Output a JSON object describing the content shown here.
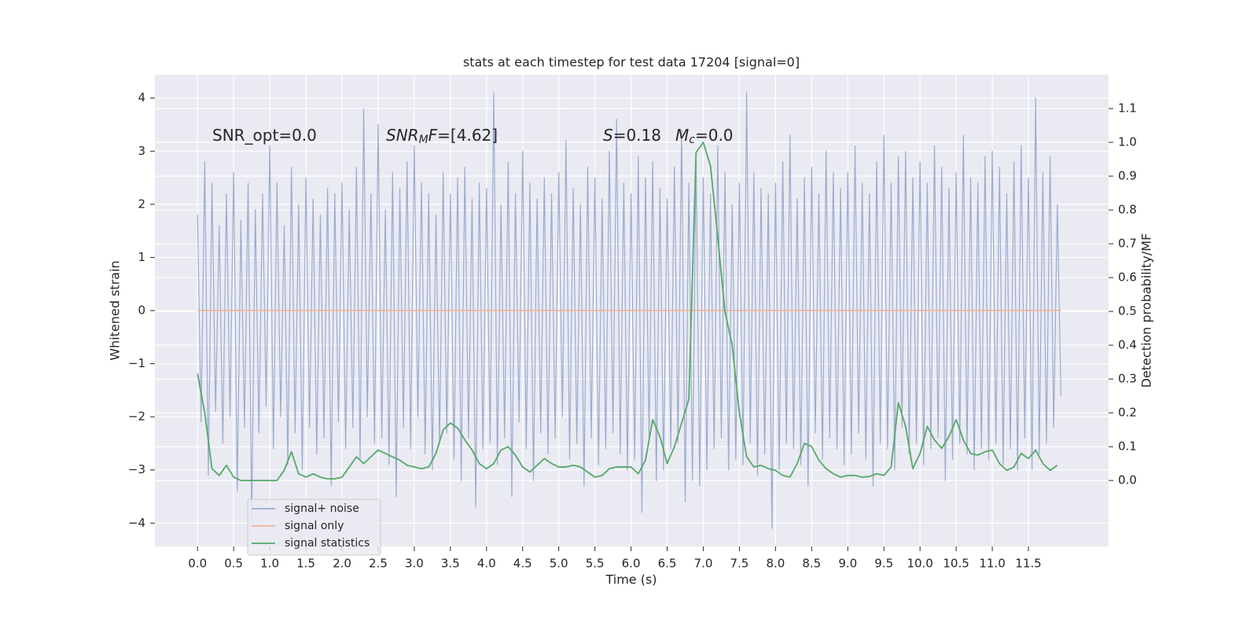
{
  "chart_data": {
    "type": "line",
    "title": "stats at each timestep for test data 17204 [signal=0]",
    "xlabel": "Time (s)",
    "ylabel": "Whitened strain",
    "y2label": "Detection probability/MF",
    "grid": true,
    "xlim": [
      -0.59,
      12.61
    ],
    "ylim": [
      -4.44,
      4.44
    ],
    "y2lim": [
      -0.195,
      1.2
    ],
    "xticks": [
      {
        "value": 0,
        "label": "0.0"
      },
      0.5,
      {
        "value": 1,
        "label": "1.0"
      },
      1.5,
      {
        "value": 2,
        "label": "2.0"
      },
      2.5,
      {
        "value": 3,
        "label": "3.0"
      },
      3.5,
      {
        "value": 4,
        "label": "4.0"
      },
      4.5,
      {
        "value": 5,
        "label": "5.0"
      },
      5.5,
      {
        "value": 6,
        "label": "6.0"
      },
      6.5,
      {
        "value": 7,
        "label": "7.0"
      },
      7.5,
      {
        "value": 8,
        "label": "8.0"
      },
      8.5,
      {
        "value": 9,
        "label": "9.0"
      },
      9.5,
      {
        "value": 10,
        "label": "10.0"
      },
      10.5,
      {
        "value": 11,
        "label": "11.0"
      },
      11.5
    ],
    "yticks": [
      {
        "value": -4,
        "label": "−4"
      },
      {
        "value": -3,
        "label": "−3"
      },
      {
        "value": -2,
        "label": "−2"
      },
      {
        "value": -1,
        "label": "−1"
      },
      0,
      1,
      2,
      3,
      4
    ],
    "y2ticks": [
      {
        "value": 0,
        "label": "0.0"
      },
      0.1,
      0.2,
      0.3,
      0.4,
      0.5,
      0.6,
      0.7,
      0.8,
      0.9,
      {
        "value": 1,
        "label": "1.0"
      },
      1.1
    ],
    "annotations": [
      {
        "parts": [
          {
            "text": "SNR_opt=0.0",
            "style": "normal"
          }
        ]
      },
      {
        "parts": [
          {
            "text": "SNR",
            "style": "italic"
          },
          {
            "text": "M",
            "style": "sub"
          },
          {
            "text": "F",
            "style": "italic"
          },
          {
            "text": "=[4.62]",
            "style": "normal"
          }
        ]
      },
      {
        "parts": [
          {
            "text": "S",
            "style": "italic"
          },
          {
            "text": "=0.18",
            "style": "normal"
          }
        ]
      },
      {
        "parts": [
          {
            "text": "M",
            "style": "italic"
          },
          {
            "text": "c",
            "style": "sub"
          },
          {
            "text": "=0.0",
            "style": "normal"
          }
        ]
      }
    ],
    "series": [
      {
        "name": "signal+ noise",
        "color": "#9aabd0",
        "axis": "y",
        "x": [
          0,
          0.05,
          0.1,
          0.15,
          0.2,
          0.25,
          0.3,
          0.35,
          0.4,
          0.45,
          0.5,
          0.55,
          0.6,
          0.65,
          0.7,
          0.75,
          0.8,
          0.85,
          0.9,
          0.95,
          1,
          1.05,
          1.1,
          1.15,
          1.2,
          1.25,
          1.3,
          1.35,
          1.4,
          1.45,
          1.5,
          1.55,
          1.6,
          1.65,
          1.7,
          1.75,
          1.8,
          1.85,
          1.9,
          1.95,
          2,
          2.05,
          2.1,
          2.15,
          2.2,
          2.25,
          2.3,
          2.35,
          2.4,
          2.45,
          2.5,
          2.55,
          2.6,
          2.65,
          2.7,
          2.75,
          2.8,
          2.85,
          2.9,
          2.95,
          3,
          3.05,
          3.1,
          3.15,
          3.2,
          3.25,
          3.3,
          3.35,
          3.4,
          3.45,
          3.5,
          3.55,
          3.6,
          3.65,
          3.7,
          3.75,
          3.8,
          3.85,
          3.9,
          3.95,
          4,
          4.05,
          4.1,
          4.15,
          4.2,
          4.25,
          4.3,
          4.35,
          4.4,
          4.45,
          4.5,
          4.55,
          4.6,
          4.65,
          4.7,
          4.75,
          4.8,
          4.85,
          4.9,
          4.95,
          5,
          5.05,
          5.1,
          5.15,
          5.2,
          5.25,
          5.3,
          5.35,
          5.4,
          5.45,
          5.5,
          5.55,
          5.6,
          5.65,
          5.7,
          5.75,
          5.8,
          5.85,
          5.9,
          5.95,
          6,
          6.05,
          6.1,
          6.15,
          6.2,
          6.25,
          6.3,
          6.35,
          6.4,
          6.45,
          6.5,
          6.55,
          6.6,
          6.65,
          6.7,
          6.75,
          6.8,
          6.85,
          6.9,
          6.95,
          7,
          7.05,
          7.1,
          7.15,
          7.2,
          7.25,
          7.3,
          7.35,
          7.4,
          7.45,
          7.5,
          7.55,
          7.6,
          7.65,
          7.7,
          7.75,
          7.8,
          7.85,
          7.9,
          7.95,
          8,
          8.05,
          8.1,
          8.15,
          8.2,
          8.25,
          8.3,
          8.35,
          8.4,
          8.45,
          8.5,
          8.55,
          8.6,
          8.65,
          8.7,
          8.75,
          8.8,
          8.85,
          8.9,
          8.95,
          9,
          9.05,
          9.1,
          9.15,
          9.2,
          9.25,
          9.3,
          9.35,
          9.4,
          9.45,
          9.5,
          9.55,
          9.6,
          9.65,
          9.7,
          9.75,
          9.8,
          9.85,
          9.9,
          9.95,
          10,
          10.05,
          10.1,
          10.15,
          10.2,
          10.25,
          10.3,
          10.35,
          10.4,
          10.45,
          10.5,
          10.55,
          10.6,
          10.65,
          10.7,
          10.75,
          10.8,
          10.85,
          10.9,
          10.95,
          11,
          11.05,
          11.1,
          11.15,
          11.2,
          11.25,
          11.3,
          11.35,
          11.4,
          11.45,
          11.5,
          11.55,
          11.6,
          11.65,
          11.7,
          11.75,
          11.8,
          11.85,
          11.9,
          11.95
        ],
        "values": [
          1.8,
          -2.1,
          2.8,
          -3.1,
          2.4,
          -1.9,
          1.6,
          -2.5,
          2.2,
          -2.0,
          2.6,
          -3.4,
          1.7,
          -2.2,
          2.4,
          -3.9,
          1.9,
          -2.3,
          2.2,
          -1.8,
          3.1,
          -2.6,
          2.4,
          -2.0,
          1.6,
          -2.9,
          2.7,
          -2.3,
          2.0,
          -3.0,
          2.5,
          -2.2,
          2.1,
          -2.7,
          1.8,
          -2.4,
          2.3,
          -3.3,
          2.2,
          -2.1,
          2.4,
          -2.6,
          1.9,
          -2.2,
          2.7,
          -2.8,
          3.8,
          -2.0,
          2.2,
          -2.5,
          3.5,
          -2.4,
          1.9,
          -2.9,
          2.6,
          -3.5,
          2.3,
          -2.2,
          2.8,
          -2.6,
          3.1,
          -2.0,
          2.4,
          -2.7,
          2.2,
          -3.0,
          1.8,
          -2.5,
          2.6,
          -2.3,
          2.2,
          -2.8,
          2.5,
          -3.2,
          2.7,
          -2.4,
          2.1,
          -3.7,
          2.4,
          -2.6,
          2.3,
          -2.5,
          4.1,
          -2.9,
          2.0,
          -2.4,
          2.8,
          -3.5,
          2.2,
          -2.1,
          3.0,
          -2.6,
          2.4,
          -3.2,
          2.1,
          -2.3,
          2.5,
          -2.7,
          2.2,
          -2.4,
          2.6,
          -2.0,
          3.2,
          -2.8,
          2.3,
          -2.5,
          2.0,
          -3.3,
          2.7,
          -2.4,
          2.5,
          -2.9,
          2.1,
          -2.6,
          3.0,
          -2.3,
          3.6,
          -2.7,
          2.4,
          -3.0,
          2.2,
          -2.8,
          2.9,
          -3.8,
          2.5,
          -2.4,
          2.8,
          -3.2,
          2.3,
          -3.0,
          2.1,
          -2.6,
          2.7,
          -2.5,
          3.4,
          -3.6,
          2.4,
          -3.2,
          2.9,
          -3.3,
          2.5,
          -3.0,
          2.2,
          -2.6,
          3.1,
          -2.4,
          2.6,
          -3.0,
          2.0,
          -2.8,
          2.4,
          -2.9,
          4.1,
          -2.5,
          2.6,
          -3.1,
          2.3,
          -2.7,
          2.2,
          -4.1,
          2.4,
          -3.0,
          2.8,
          -2.5,
          3.3,
          -2.6,
          2.1,
          -2.9,
          2.5,
          -3.3,
          2.7,
          -2.3,
          2.2,
          -2.8,
          3.0,
          -2.4,
          2.6,
          -2.6,
          2.3,
          -2.9,
          2.6,
          -2.7,
          3.1,
          -2.3,
          2.4,
          -2.8,
          2.2,
          -3.3,
          2.8,
          -2.5,
          3.3,
          -2.6,
          2.4,
          -3.0,
          2.9,
          -2.2,
          3.0,
          -2.7,
          2.5,
          -2.5,
          2.8,
          -2.9,
          2.4,
          -2.6,
          3.1,
          -2.4,
          2.7,
          -3.2,
          2.3,
          -2.8,
          2.6,
          -2.5,
          3.3,
          -2.7,
          2.5,
          -3.0,
          2.4,
          -2.6,
          2.9,
          -2.8,
          3.0,
          -2.5,
          2.7,
          -2.9,
          2.2,
          -2.6,
          2.8,
          -3.0,
          3.1,
          -2.4,
          2.5,
          -3.0,
          4.0,
          -2.7,
          2.6,
          -2.5,
          2.9,
          -2.2,
          2.0,
          -1.6
        ]
      },
      {
        "name": "signal only",
        "color": "#eab59c",
        "axis": "y",
        "x": [
          0,
          11.95
        ],
        "values": [
          0,
          0
        ]
      },
      {
        "name": "signal statistics",
        "color": "#55a868",
        "axis": "y2",
        "x": [
          0,
          0.1,
          0.2,
          0.3,
          0.4,
          0.5,
          0.6,
          0.7,
          0.8,
          0.9,
          1,
          1.1,
          1.2,
          1.3,
          1.4,
          1.5,
          1.6,
          1.7,
          1.8,
          1.9,
          2,
          2.1,
          2.2,
          2.3,
          2.4,
          2.5,
          2.6,
          2.7,
          2.8,
          2.9,
          3,
          3.1,
          3.2,
          3.3,
          3.4,
          3.5,
          3.6,
          3.7,
          3.8,
          3.9,
          4,
          4.1,
          4.2,
          4.3,
          4.4,
          4.5,
          4.6,
          4.7,
          4.8,
          4.9,
          5,
          5.1,
          5.2,
          5.3,
          5.4,
          5.5,
          5.6,
          5.7,
          5.8,
          5.9,
          6,
          6.1,
          6.2,
          6.3,
          6.4,
          6.5,
          6.6,
          6.7,
          6.8,
          6.9,
          7,
          7.1,
          7.2,
          7.3,
          7.4,
          7.5,
          7.6,
          7.7,
          7.8,
          7.9,
          8,
          8.1,
          8.2,
          8.3,
          8.4,
          8.5,
          8.6,
          8.7,
          8.8,
          8.9,
          9,
          9.1,
          9.2,
          9.3,
          9.4,
          9.5,
          9.6,
          9.7,
          9.8,
          9.9,
          10,
          10.1,
          10.2,
          10.3,
          10.4,
          10.5,
          10.6,
          10.7,
          10.8,
          10.9,
          11,
          11.1,
          11.2,
          11.3,
          11.4,
          11.5,
          11.6,
          11.7,
          11.8,
          11.9
        ],
        "values": [
          0.316,
          0.2,
          0.035,
          0.015,
          0.045,
          0.01,
          0,
          0,
          0,
          0,
          0,
          0,
          0.03,
          0.085,
          0.02,
          0.01,
          0.02,
          0.01,
          0.005,
          0.005,
          0.01,
          0.04,
          0.07,
          0.05,
          0.07,
          0.09,
          0.08,
          0.07,
          0.06,
          0.045,
          0.04,
          0.035,
          0.04,
          0.08,
          0.15,
          0.17,
          0.155,
          0.12,
          0.09,
          0.05,
          0.035,
          0.05,
          0.09,
          0.1,
          0.075,
          0.04,
          0.025,
          0.045,
          0.065,
          0.05,
          0.04,
          0.04,
          0.045,
          0.04,
          0.025,
          0.01,
          0.015,
          0.035,
          0.04,
          0.04,
          0.04,
          0.02,
          0.06,
          0.18,
          0.13,
          0.05,
          0.1,
          0.17,
          0.24,
          0.97,
          1.0,
          0.93,
          0.72,
          0.5,
          0.4,
          0.2,
          0.07,
          0.04,
          0.045,
          0.035,
          0.03,
          0.015,
          0.01,
          0.05,
          0.11,
          0.1,
          0.06,
          0.035,
          0.02,
          0.01,
          0.015,
          0.015,
          0.01,
          0.012,
          0.02,
          0.015,
          0.04,
          0.23,
          0.16,
          0.035,
          0.08,
          0.16,
          0.12,
          0.095,
          0.13,
          0.18,
          0.12,
          0.08,
          0.075,
          0.085,
          0.09,
          0.05,
          0.03,
          0.04,
          0.08,
          0.065,
          0.09,
          0.05,
          0.03,
          0.045
        ]
      }
    ]
  }
}
